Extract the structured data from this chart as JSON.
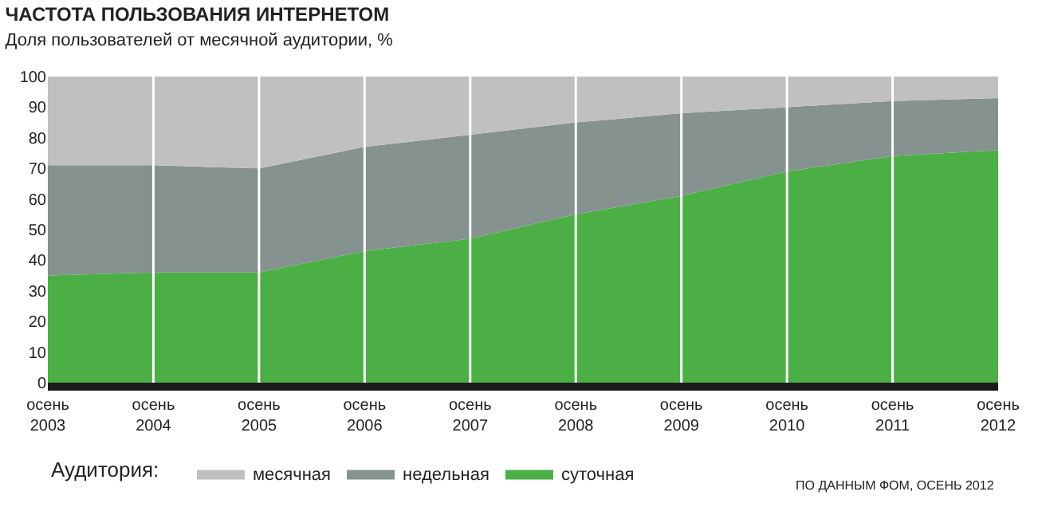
{
  "chart_data": {
    "type": "area",
    "stacked": true,
    "title": "ЧАСТОТА ПОЛЬЗОВАНИЯ ИНТЕРНЕТОМ",
    "subtitle": "Доля пользователей от месячной аудитории, %",
    "categories": [
      "осень\n2003",
      "осень\n2004",
      "осень\n2005",
      "осень\n2006",
      "осень\n2007",
      "осень\n2008",
      "осень\n2009",
      "осень\n2010",
      "осень\n2011",
      "осень\n2012"
    ],
    "series": [
      {
        "name": "суточная",
        "color": "#4caf46",
        "values": [
          35,
          36,
          36,
          43,
          47,
          55,
          61,
          69,
          74,
          76
        ]
      },
      {
        "name": "недельная",
        "color": "#85928f",
        "values": [
          36,
          35,
          34,
          34,
          34,
          30,
          27,
          21,
          18,
          17
        ]
      },
      {
        "name": "месячная",
        "color": "#c0c0c0",
        "values": [
          29,
          29,
          30,
          23,
          19,
          15,
          12,
          10,
          8,
          7
        ]
      }
    ],
    "ylim": [
      0,
      100
    ],
    "yticks": [
      0,
      10,
      20,
      30,
      40,
      50,
      60,
      70,
      80,
      90,
      100
    ],
    "grid": "x",
    "legend": "bottom",
    "legend_title": "Аудитория:",
    "annotations": [
      "ПО ДАННЫМ ФОМ, ОСЕНЬ 2012"
    ]
  }
}
